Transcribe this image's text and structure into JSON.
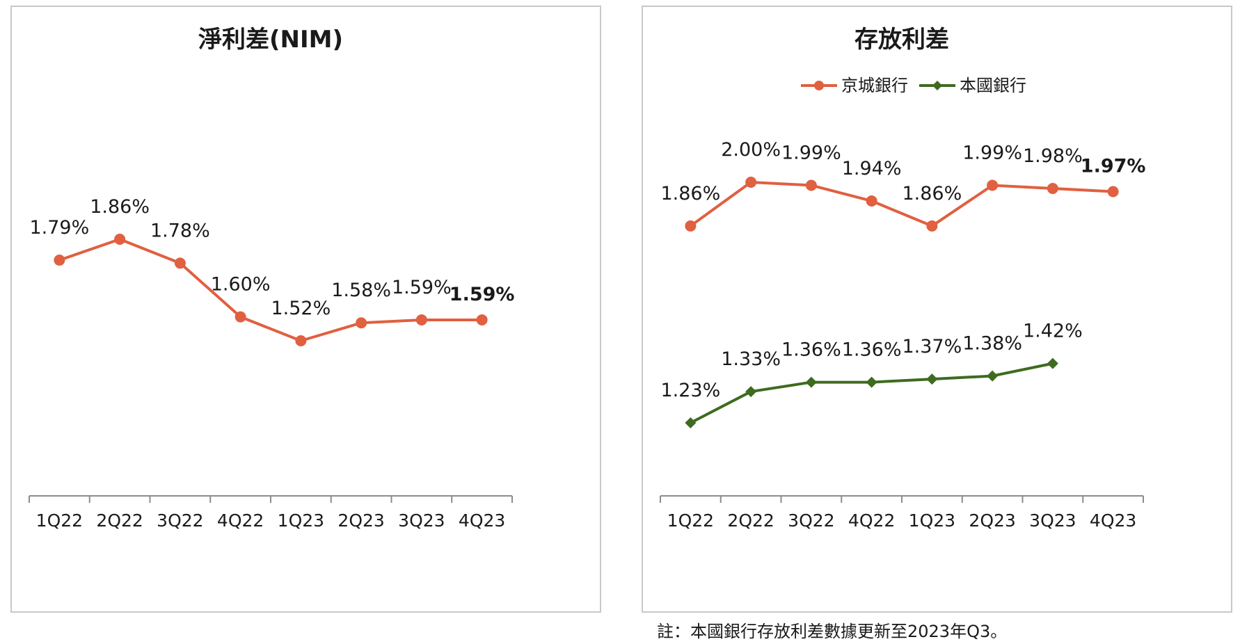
{
  "chart_data": [
    {
      "type": "line",
      "title": "淨利差(NIM)",
      "categories": [
        "1Q22",
        "2Q22",
        "3Q22",
        "4Q22",
        "1Q23",
        "2Q23",
        "3Q23",
        "4Q23"
      ],
      "series": [
        {
          "name": "淨利差(NIM)",
          "color": "#e06040",
          "marker": "circle",
          "values": [
            1.79,
            1.86,
            1.78,
            1.6,
            1.52,
            1.58,
            1.59,
            1.59
          ],
          "labels": [
            "1.79%",
            "1.86%",
            "1.78%",
            "1.60%",
            "1.52%",
            "1.58%",
            "1.59%",
            "1.59%"
          ],
          "highlight_last": true
        }
      ],
      "xlabel": "",
      "ylabel": "",
      "ylim": [
        1.0,
        2.0
      ],
      "grid": false,
      "legend": "none"
    },
    {
      "type": "line",
      "title": "存放利差",
      "categories": [
        "1Q22",
        "2Q22",
        "3Q22",
        "4Q22",
        "1Q23",
        "2Q23",
        "3Q23",
        "4Q23"
      ],
      "series": [
        {
          "name": "京城銀行",
          "color": "#e06040",
          "marker": "circle",
          "values": [
            1.86,
            2.0,
            1.99,
            1.94,
            1.86,
            1.99,
            1.98,
            1.97
          ],
          "labels": [
            "1.86%",
            "2.00%",
            "1.99%",
            "1.94%",
            "1.86%",
            "1.99%",
            "1.98%",
            "1.97%"
          ],
          "highlight_last": true
        },
        {
          "name": "本國銀行",
          "color": "#3e6b1f",
          "marker": "diamond",
          "values": [
            1.23,
            1.33,
            1.36,
            1.36,
            1.37,
            1.38,
            1.42,
            null
          ],
          "labels": [
            "1.23%",
            "1.33%",
            "1.36%",
            "1.36%",
            "1.37%",
            "1.38%",
            "1.42%",
            null
          ],
          "highlight_last": false
        }
      ],
      "xlabel": "",
      "ylabel": "",
      "ylim": [
        0.8,
        2.2
      ],
      "grid": false,
      "legend": "top-center"
    }
  ],
  "footnote": "註：本國銀行存放利差數據更新至2023年Q3。"
}
